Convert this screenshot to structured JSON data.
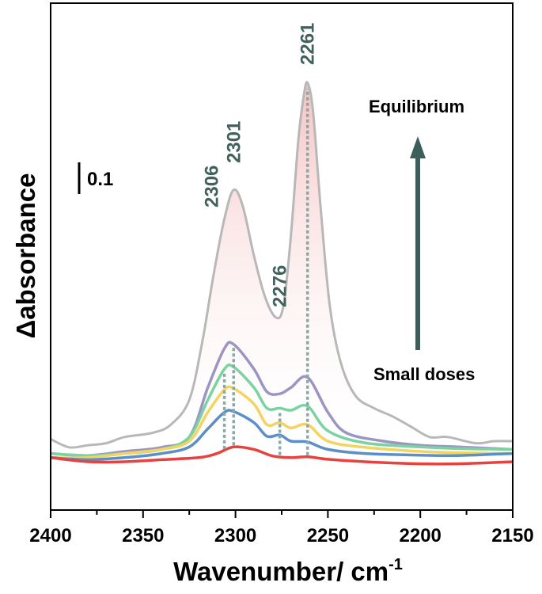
{
  "chart_data": {
    "type": "line",
    "xlabel": "Wavenumber/ cm",
    "xlabel_sup": "-1",
    "ylabel": "Δabsorbance",
    "x_range": [
      2400,
      2150
    ],
    "x_ticks": [
      "2400",
      "2350",
      "2300",
      "2250",
      "2200",
      "2150"
    ],
    "scale_bar_label": "0.1",
    "scale_bar_value": 0.1,
    "annotations": {
      "top": "Equilibrium",
      "bottom": "Small doses"
    },
    "peaks": [
      {
        "label": "2306",
        "x": 2306,
        "top_series": 3
      },
      {
        "label": "2301",
        "x": 2301,
        "top_series": 4
      },
      {
        "label": "2276",
        "x": 2276,
        "top_series": 3
      },
      {
        "label": "2261",
        "x": 2261,
        "top_series": 4
      }
    ],
    "colors": {
      "peak_label": "#40615c",
      "dotted_line": "#8aa8a4",
      "arrow": "#3c5f5b",
      "fill_top": "#f4b8b8",
      "fill_bottom": "#ffffff"
    },
    "series": [
      {
        "color": "#e8413e",
        "points": [
          [
            2400,
            0.01
          ],
          [
            2380,
            0.0
          ],
          [
            2360,
            0.0
          ],
          [
            2340,
            0.005
          ],
          [
            2320,
            0.01
          ],
          [
            2310,
            0.02
          ],
          [
            2301,
            0.036
          ],
          [
            2290,
            0.03
          ],
          [
            2280,
            0.014
          ],
          [
            2270,
            0.01
          ],
          [
            2261,
            0.012
          ],
          [
            2250,
            0.006
          ],
          [
            2230,
            0.0
          ],
          [
            2200,
            -0.005
          ],
          [
            2180,
            -0.005
          ],
          [
            2150,
            0.0
          ]
        ]
      },
      {
        "color": "#5b8fc9",
        "points": [
          [
            2400,
            0.01
          ],
          [
            2380,
            0.005
          ],
          [
            2360,
            0.01
          ],
          [
            2340,
            0.02
          ],
          [
            2325,
            0.036
          ],
          [
            2315,
            0.08
          ],
          [
            2306,
            0.12
          ],
          [
            2301,
            0.122
          ],
          [
            2290,
            0.095
          ],
          [
            2283,
            0.062
          ],
          [
            2276,
            0.065
          ],
          [
            2270,
            0.05
          ],
          [
            2261,
            0.048
          ],
          [
            2250,
            0.03
          ],
          [
            2230,
            0.02
          ],
          [
            2200,
            0.016
          ],
          [
            2180,
            0.015
          ],
          [
            2150,
            0.02
          ]
        ]
      },
      {
        "color": "#f4d460",
        "points": [
          [
            2400,
            0.01
          ],
          [
            2380,
            0.01
          ],
          [
            2360,
            0.02
          ],
          [
            2340,
            0.03
          ],
          [
            2325,
            0.05
          ],
          [
            2315,
            0.12
          ],
          [
            2306,
            0.175
          ],
          [
            2301,
            0.178
          ],
          [
            2290,
            0.14
          ],
          [
            2283,
            0.09
          ],
          [
            2276,
            0.095
          ],
          [
            2270,
            0.082
          ],
          [
            2261,
            0.09
          ],
          [
            2250,
            0.05
          ],
          [
            2230,
            0.035
          ],
          [
            2200,
            0.025
          ],
          [
            2180,
            0.022
          ],
          [
            2150,
            0.02
          ]
        ]
      },
      {
        "color": "#7bd3a1",
        "points": [
          [
            2400,
            0.02
          ],
          [
            2380,
            0.015
          ],
          [
            2360,
            0.02
          ],
          [
            2340,
            0.03
          ],
          [
            2325,
            0.06
          ],
          [
            2315,
            0.15
          ],
          [
            2306,
            0.225
          ],
          [
            2301,
            0.23
          ],
          [
            2290,
            0.18
          ],
          [
            2283,
            0.13
          ],
          [
            2276,
            0.13
          ],
          [
            2270,
            0.125
          ],
          [
            2261,
            0.135
          ],
          [
            2250,
            0.075
          ],
          [
            2230,
            0.046
          ],
          [
            2200,
            0.036
          ],
          [
            2180,
            0.032
          ],
          [
            2150,
            0.03
          ]
        ]
      },
      {
        "color": "#9c95c4",
        "points": [
          [
            2400,
            0.02
          ],
          [
            2380,
            0.015
          ],
          [
            2360,
            0.025
          ],
          [
            2340,
            0.035
          ],
          [
            2325,
            0.06
          ],
          [
            2315,
            0.18
          ],
          [
            2306,
            0.275
          ],
          [
            2301,
            0.285
          ],
          [
            2290,
            0.225
          ],
          [
            2283,
            0.17
          ],
          [
            2276,
            0.165
          ],
          [
            2270,
            0.18
          ],
          [
            2261,
            0.205
          ],
          [
            2250,
            0.12
          ],
          [
            2240,
            0.07
          ],
          [
            2220,
            0.05
          ],
          [
            2200,
            0.04
          ],
          [
            2180,
            0.036
          ],
          [
            2150,
            0.03
          ]
        ]
      },
      {
        "color": "#b8b8b8",
        "points": [
          [
            2400,
            0.055
          ],
          [
            2390,
            0.035
          ],
          [
            2380,
            0.04
          ],
          [
            2370,
            0.045
          ],
          [
            2360,
            0.06
          ],
          [
            2345,
            0.07
          ],
          [
            2335,
            0.09
          ],
          [
            2325,
            0.15
          ],
          [
            2318,
            0.29
          ],
          [
            2312,
            0.45
          ],
          [
            2306,
            0.59
          ],
          [
            2301,
            0.66
          ],
          [
            2296,
            0.62
          ],
          [
            2290,
            0.5
          ],
          [
            2284,
            0.4
          ],
          [
            2278,
            0.35
          ],
          [
            2274,
            0.38
          ],
          [
            2270,
            0.55
          ],
          [
            2266,
            0.78
          ],
          [
            2263,
            0.89
          ],
          [
            2261,
            0.92
          ],
          [
            2258,
            0.85
          ],
          [
            2254,
            0.62
          ],
          [
            2249,
            0.38
          ],
          [
            2243,
            0.24
          ],
          [
            2235,
            0.16
          ],
          [
            2225,
            0.13
          ],
          [
            2215,
            0.11
          ],
          [
            2205,
            0.085
          ],
          [
            2195,
            0.06
          ],
          [
            2185,
            0.06
          ],
          [
            2170,
            0.045
          ],
          [
            2160,
            0.05
          ],
          [
            2150,
            0.05
          ]
        ]
      }
    ]
  }
}
